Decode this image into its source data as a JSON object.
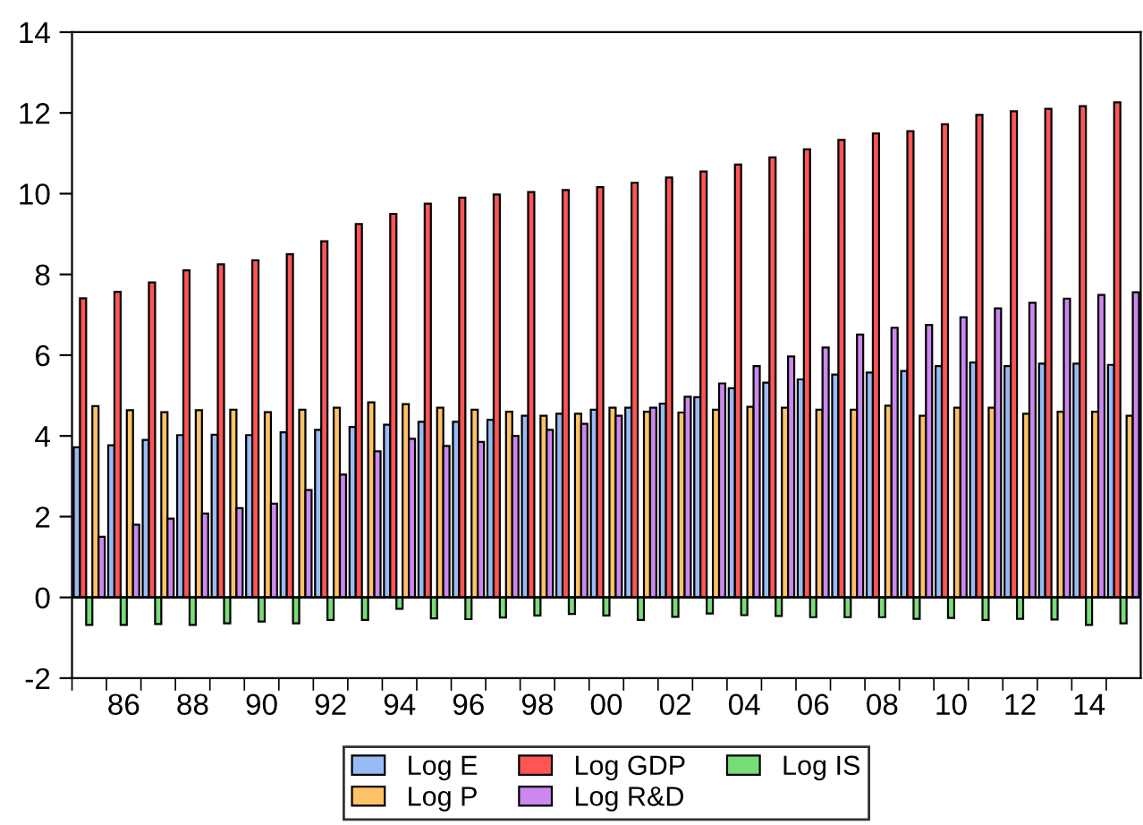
{
  "chart_data": {
    "type": "bar",
    "categories": [
      null,
      "86",
      null,
      "88",
      null,
      "90",
      null,
      "92",
      null,
      "94",
      null,
      "96",
      null,
      "98",
      null,
      "00",
      null,
      "02",
      null,
      "04",
      null,
      "06",
      null,
      "08",
      null,
      "10",
      null,
      "12",
      null,
      "14",
      null
    ],
    "series": [
      {
        "name": "Log E",
        "color": "#99bbf5",
        "values": [
          3.72,
          3.77,
          3.9,
          4.02,
          4.03,
          4.02,
          4.09,
          4.15,
          4.22,
          4.28,
          4.35,
          4.35,
          4.4,
          4.5,
          4.55,
          4.65,
          4.7,
          4.8,
          4.96,
          5.18,
          5.32,
          5.4,
          5.52,
          5.57,
          5.61,
          5.73,
          5.82,
          5.73,
          5.79,
          5.79,
          5.76
        ]
      },
      {
        "name": "Log GDP",
        "color": "#ff5555",
        "values": [
          7.41,
          7.57,
          7.8,
          8.1,
          8.25,
          8.35,
          8.5,
          8.82,
          9.25,
          9.5,
          9.75,
          9.9,
          9.98,
          10.04,
          10.09,
          10.16,
          10.27,
          10.4,
          10.55,
          10.72,
          10.9,
          11.1,
          11.33,
          11.49,
          11.55,
          11.72,
          11.95,
          12.04,
          12.1,
          12.17,
          12.26
        ]
      },
      {
        "name": "Log IS",
        "color": "#77dd77",
        "values": [
          -0.68,
          -0.68,
          -0.66,
          -0.68,
          -0.64,
          -0.6,
          -0.64,
          -0.56,
          -0.56,
          -0.28,
          -0.52,
          -0.54,
          -0.5,
          -0.45,
          -0.41,
          -0.45,
          -0.56,
          -0.48,
          -0.4,
          -0.44,
          -0.46,
          -0.49,
          -0.49,
          -0.49,
          -0.53,
          -0.51,
          -0.56,
          -0.53,
          -0.55,
          -0.68,
          -0.64
        ]
      },
      {
        "name": "Log P",
        "color": "#ffc266",
        "values": [
          4.74,
          4.64,
          4.59,
          4.64,
          4.65,
          4.59,
          4.65,
          4.7,
          4.83,
          4.79,
          4.7,
          4.65,
          4.6,
          4.5,
          4.55,
          4.7,
          4.6,
          4.58,
          4.65,
          4.72,
          4.7,
          4.65,
          4.65,
          4.75,
          4.5,
          4.7,
          4.7,
          4.55,
          4.6,
          4.6,
          4.5
        ]
      },
      {
        "name": "Log R&D",
        "color": "#cc88ee",
        "values": [
          1.5,
          1.8,
          1.95,
          2.08,
          2.21,
          2.32,
          2.66,
          3.04,
          3.62,
          3.93,
          3.75,
          3.85,
          4.0,
          4.15,
          4.3,
          4.5,
          4.7,
          4.97,
          5.3,
          5.73,
          5.97,
          6.19,
          6.51,
          6.68,
          6.75,
          6.94,
          7.16,
          7.3,
          7.4,
          7.49,
          7.56
        ]
      }
    ],
    "ylim": [
      -2,
      14
    ],
    "yticks": [
      {
        "value": -2,
        "label": "-2"
      },
      0,
      2,
      4,
      6,
      8,
      10,
      12,
      14
    ],
    "ref_lines": [
      {
        "axis": "y",
        "value": 0,
        "color": "#000000"
      }
    ],
    "grid": false,
    "legend": "bottom"
  }
}
